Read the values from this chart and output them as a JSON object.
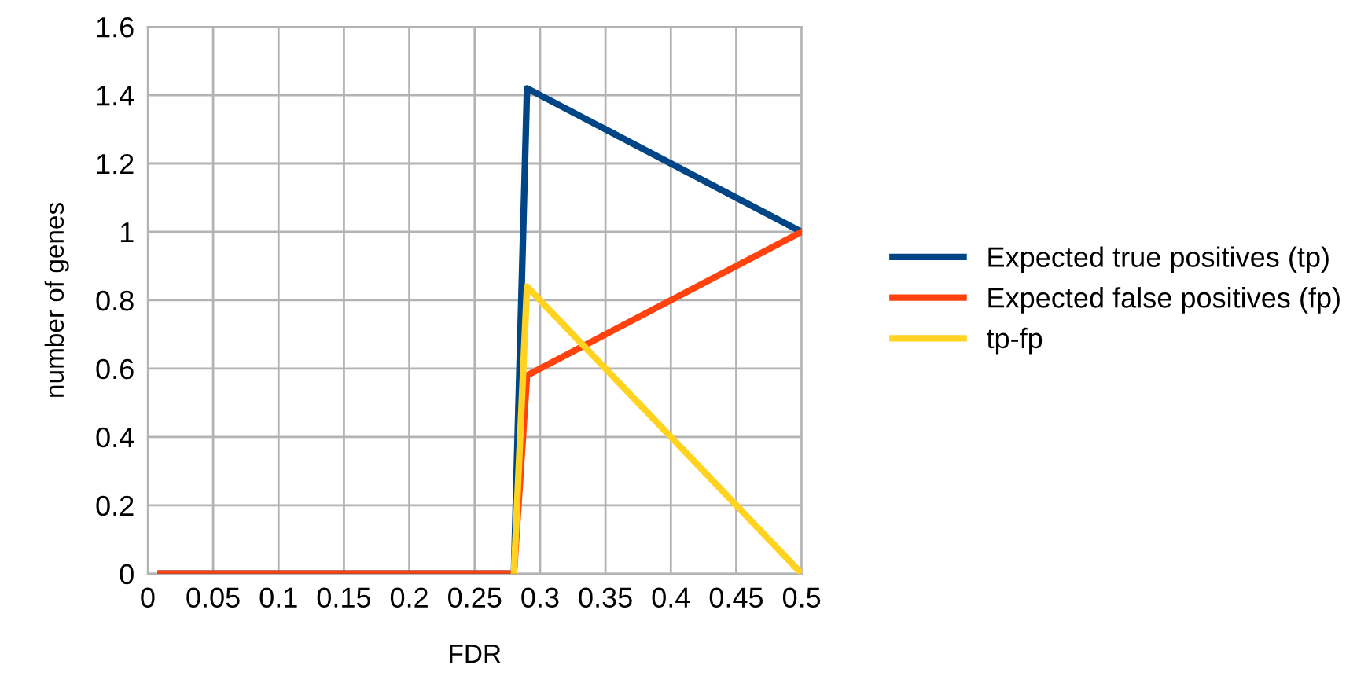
{
  "chart_data": {
    "type": "line",
    "xlabel": "FDR",
    "ylabel": "number of genes",
    "xlim": [
      0,
      0.5
    ],
    "xticks": [
      0,
      0.05,
      0.1,
      0.15,
      0.2,
      0.25,
      0.3,
      0.35,
      0.4,
      0.45,
      0.5
    ],
    "ylim": [
      0,
      1.6
    ],
    "yticks": [
      0,
      0.2,
      0.4,
      0.6,
      0.8,
      1,
      1.2,
      1.4,
      1.6
    ],
    "grid": true,
    "legend": "right",
    "marker": "none",
    "line_style": "solid",
    "series": [
      {
        "name": "Expected true positives (tp)",
        "color": "#004586",
        "x": [
          0.01,
          0.28,
          0.29,
          0.5
        ],
        "values": [
          0,
          0,
          1.42,
          1.0
        ]
      },
      {
        "name": "Expected false positives (fp)",
        "color": "#ff420e",
        "x": [
          0.01,
          0.28,
          0.29,
          0.5
        ],
        "values": [
          0,
          0,
          0.58,
          1.0
        ]
      },
      {
        "name": "tp-fp",
        "color": "#ffd320",
        "x": [
          0.28,
          0.29,
          0.5
        ],
        "values": [
          0,
          0.84,
          0
        ]
      }
    ]
  }
}
